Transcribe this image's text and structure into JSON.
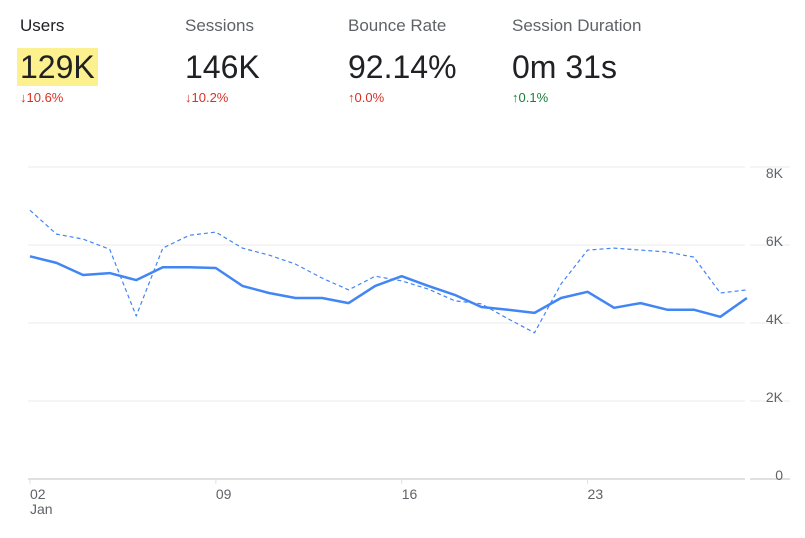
{
  "metrics": [
    {
      "label": "Users",
      "value": "129K",
      "delta": "10.6%",
      "direction": "down",
      "delta_color": "#d93025",
      "selected": true
    },
    {
      "label": "Sessions",
      "value": "146K",
      "delta": "10.2%",
      "direction": "down",
      "delta_color": "#d93025"
    },
    {
      "label": "Bounce Rate",
      "value": "92.14%",
      "delta": "0.0%",
      "direction": "up",
      "delta_color": "#d93025"
    },
    {
      "label": "Session Duration",
      "value": "0m 31s",
      "delta": "0.1%",
      "direction": "up",
      "delta_color": "#188038"
    }
  ],
  "chart_data": {
    "type": "line",
    "x": [
      "Jan 02",
      "Jan 03",
      "Jan 04",
      "Jan 05",
      "Jan 06",
      "Jan 07",
      "Jan 08",
      "Jan 09",
      "Jan 10",
      "Jan 11",
      "Jan 12",
      "Jan 13",
      "Jan 14",
      "Jan 15",
      "Jan 16",
      "Jan 17",
      "Jan 18",
      "Jan 19",
      "Jan 20",
      "Jan 21",
      "Jan 22",
      "Jan 23",
      "Jan 24",
      "Jan 25",
      "Jan 26",
      "Jan 27",
      "Jan 28",
      "Jan 29"
    ],
    "x_ticks": [
      {
        "label": "02",
        "sub": "Jan",
        "index": 0
      },
      {
        "label": "09",
        "index": 7
      },
      {
        "label": "16",
        "index": 14
      },
      {
        "label": "23",
        "index": 21
      }
    ],
    "y_ticks": [
      "0",
      "2K",
      "4K",
      "6K",
      "8K"
    ],
    "ylim": [
      0,
      8000
    ],
    "y_axis_side": "right",
    "grid": true,
    "series": [
      {
        "style": "solid",
        "color": "#4285f4",
        "values": [
          5710,
          5540,
          5230,
          5280,
          5100,
          5430,
          5430,
          5410,
          4950,
          4770,
          4640,
          4640,
          4510,
          4950,
          5200,
          4950,
          4720,
          4410,
          4340,
          4260,
          4640,
          4800,
          4390,
          4510,
          4340,
          4340,
          4160,
          4640
        ]
      },
      {
        "style": "dashed",
        "color": "#4285f4",
        "values": [
          6890,
          6280,
          6150,
          5890,
          4180,
          5920,
          6250,
          6330,
          5920,
          5740,
          5510,
          5150,
          4850,
          5200,
          5080,
          4870,
          4570,
          4490,
          4110,
          3750,
          5000,
          5870,
          5920,
          5870,
          5820,
          5690,
          4770,
          4850
        ]
      }
    ]
  }
}
